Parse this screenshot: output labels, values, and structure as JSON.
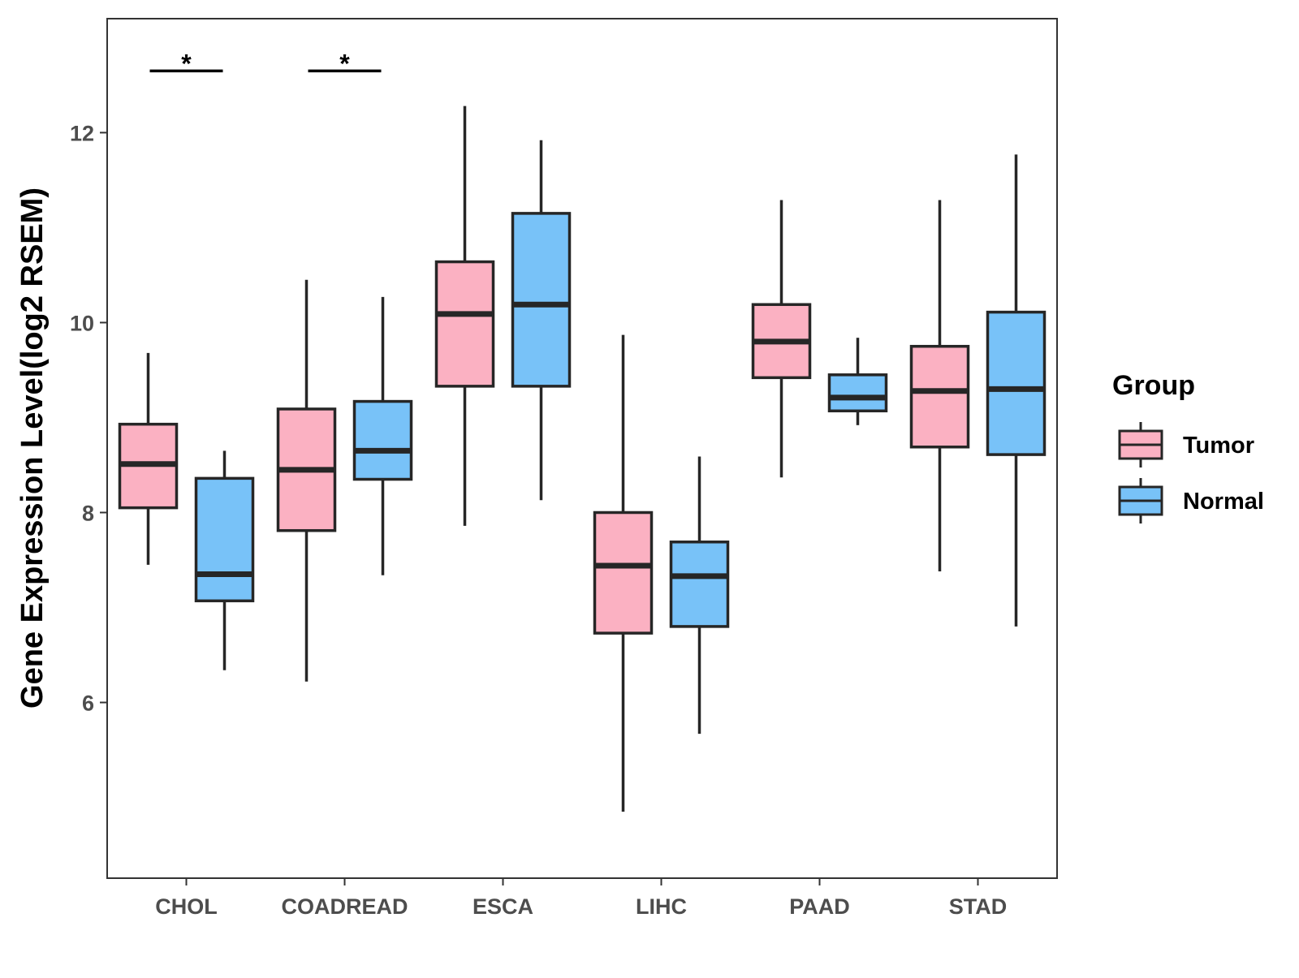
{
  "chart_data": {
    "type": "box",
    "title": "",
    "xlabel": "",
    "ylabel": "Gene Expression Level(log2 RSEM)",
    "ylim": [
      4.15,
      13.2
    ],
    "yticks": [
      6,
      8,
      10,
      12
    ],
    "categories": [
      "CHOL",
      "COADREAD",
      "ESCA",
      "LIHC",
      "PAAD",
      "STAD"
    ],
    "legend": {
      "title": "Group",
      "position": "right"
    },
    "grid": false,
    "series": [
      {
        "name": "Tumor",
        "color": "#FBB1C2",
        "boxes": [
          {
            "whisker_low": 7.45,
            "q1": 8.05,
            "median": 8.51,
            "q3": 8.93,
            "whisker_high": 9.68
          },
          {
            "whisker_low": 6.22,
            "q1": 7.81,
            "median": 8.45,
            "q3": 9.09,
            "whisker_high": 10.45
          },
          {
            "whisker_low": 7.86,
            "q1": 9.33,
            "median": 10.09,
            "q3": 10.64,
            "whisker_high": 12.28
          },
          {
            "whisker_low": 4.85,
            "q1": 6.73,
            "median": 7.44,
            "q3": 8.0,
            "whisker_high": 9.87
          },
          {
            "whisker_low": 8.37,
            "q1": 9.42,
            "median": 9.8,
            "q3": 10.19,
            "whisker_high": 11.29
          },
          {
            "whisker_low": 7.38,
            "q1": 8.69,
            "median": 9.28,
            "q3": 9.75,
            "whisker_high": 11.29
          }
        ]
      },
      {
        "name": "Normal",
        "color": "#78C2F8",
        "boxes": [
          {
            "whisker_low": 6.34,
            "q1": 7.07,
            "median": 7.35,
            "q3": 8.36,
            "whisker_high": 8.65
          },
          {
            "whisker_low": 7.34,
            "q1": 8.35,
            "median": 8.65,
            "q3": 9.17,
            "whisker_high": 10.27
          },
          {
            "whisker_low": 8.13,
            "q1": 9.33,
            "median": 10.19,
            "q3": 11.15,
            "whisker_high": 11.92
          },
          {
            "whisker_low": 5.67,
            "q1": 6.8,
            "median": 7.33,
            "q3": 7.69,
            "whisker_high": 8.59
          },
          {
            "whisker_low": 8.92,
            "q1": 9.07,
            "median": 9.21,
            "q3": 9.45,
            "whisker_high": 9.84
          },
          {
            "whisker_low": 6.8,
            "q1": 8.61,
            "median": 9.3,
            "q3": 10.11,
            "whisker_high": 11.77
          }
        ]
      }
    ],
    "annotations": [
      {
        "category": "CHOL",
        "label": "*",
        "y": 12.65
      },
      {
        "category": "COADREAD",
        "label": "*",
        "y": 12.65
      }
    ]
  }
}
